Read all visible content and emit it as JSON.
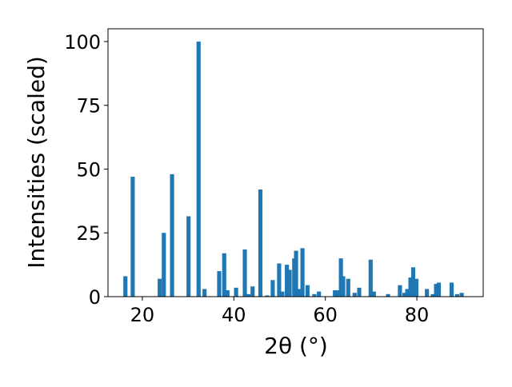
{
  "chart_data": {
    "type": "bar",
    "title": "",
    "xlabel": "2θ (°)",
    "ylabel": "Intensities (scaled)",
    "xlim": [
      12.5,
      94.5
    ],
    "ylim": [
      0,
      105
    ],
    "xticks": [
      20,
      40,
      60,
      80
    ],
    "yticks": [
      0,
      25,
      50,
      75,
      100
    ],
    "grid": false,
    "legend": "none",
    "bar_color": "#1f77b4",
    "bar_width": 0.9,
    "x": [
      16.3,
      17.9,
      23.8,
      24.7,
      26.5,
      30.1,
      32.3,
      33.6,
      36.8,
      37.9,
      38.6,
      40.5,
      42.4,
      43.2,
      44.1,
      45.8,
      47.3,
      48.5,
      49.9,
      50.6,
      51.6,
      52.2,
      53.2,
      53.6,
      54.1,
      55.0,
      56.1,
      57.6,
      58.6,
      62.1,
      62.7,
      63.4,
      63.9,
      65.0,
      66.4,
      67.4,
      69.9,
      70.6,
      73.7,
      76.3,
      77.3,
      77.9,
      78.6,
      79.2,
      79.9,
      82.2,
      83.5,
      84.2,
      84.8,
      87.6,
      88.8,
      89.8
    ],
    "values": [
      8,
      47,
      7,
      25,
      48,
      31.5,
      100,
      3,
      10,
      17,
      2.5,
      3.5,
      18.5,
      1,
      4,
      42,
      0.5,
      6.5,
      13,
      2,
      12.5,
      10.5,
      15,
      18,
      3,
      19,
      4.5,
      1,
      2,
      2.5,
      2.5,
      15,
      8,
      7,
      1.5,
      3.5,
      14.5,
      2,
      1,
      4.5,
      1.5,
      3,
      7.5,
      11.5,
      7,
      3,
      1,
      5,
      5.5,
      5.5,
      1,
      1.5
    ]
  }
}
